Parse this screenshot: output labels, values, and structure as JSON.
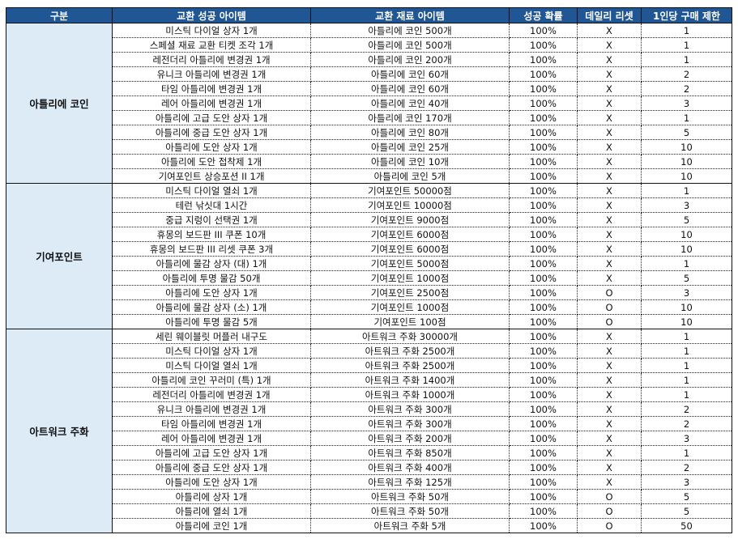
{
  "headers": [
    "구분",
    "교환 성공 아이템",
    "교환 재료 아이템",
    "성공 확률",
    "데일리 리셋",
    "1인당 구매 제한"
  ],
  "groups": [
    {
      "name": "아틀리에 코인",
      "rows": [
        [
          "미스틱 다이얼 상자 1개",
          "아틀리에 코인 500개",
          "100%",
          "X",
          "1"
        ],
        [
          "스페셜 재료 교환 티켓 조각 1개",
          "아틀리에 코인 500개",
          "100%",
          "X",
          "1"
        ],
        [
          "레전더리 아틀리에 변경권 1개",
          "아틀리에 코인 200개",
          "100%",
          "X",
          "1"
        ],
        [
          "유니크 아틀리에 변경권 1개",
          "아틀리에 코인 60개",
          "100%",
          "X",
          "2"
        ],
        [
          "타임 아틀리에 변경권 1개",
          "아틀리에 코인 60개",
          "100%",
          "X",
          "2"
        ],
        [
          "레어 아틀리에 변경권 1개",
          "아틀리에 코인 40개",
          "100%",
          "X",
          "3"
        ],
        [
          "아틀리에 고급 도안 상자 1개",
          "아틀리에 코인 170개",
          "100%",
          "X",
          "1"
        ],
        [
          "아틀리에 중급 도안 상자 1개",
          "아틀리에 코인 80개",
          "100%",
          "X",
          "5"
        ],
        [
          "아틀리에 도안 상자 1개",
          "아틀리에 코인 25개",
          "100%",
          "X",
          "10"
        ],
        [
          "아틀리에 도안 접착제 1개",
          "아틀리에 코인 10개",
          "100%",
          "X",
          "10"
        ],
        [
          "기여포인트 상승포션 II 1개",
          "아틀리에 코인 5개",
          "100%",
          "X",
          "10"
        ]
      ]
    },
    {
      "name": "기여포인트",
      "rows": [
        [
          "미스틱 다이얼 열쇠 1개",
          "기여포인트 50000점",
          "100%",
          "X",
          "1"
        ],
        [
          "테런 낚싯대 1시간",
          "기여포인트 10000점",
          "100%",
          "X",
          "3"
        ],
        [
          "중급 지렁이 선택권 1개",
          "기여포인트 9000점",
          "100%",
          "X",
          "5"
        ],
        [
          "휴몽의 보드판 III 쿠폰 10개",
          "기여포인트 6000점",
          "100%",
          "X",
          "10"
        ],
        [
          "휴몽의 보드판 III 리셋 쿠폰 3개",
          "기여포인트 6000점",
          "100%",
          "X",
          "10"
        ],
        [
          "아틀리에 물감 상자 (대) 1개",
          "기여포인트 5000점",
          "100%",
          "X",
          "1"
        ],
        [
          "아틀리에 투명 물감 50개",
          "기여포인트 1000점",
          "100%",
          "X",
          "5"
        ],
        [
          "아틀리에 도안 상자 1개",
          "기여포인트 2500점",
          "100%",
          "O",
          "3"
        ],
        [
          "아틀리에 물감 상자 (소) 1개",
          "기여포인트 1000점",
          "100%",
          "O",
          "10"
        ],
        [
          "아틀리에 투명 물감 5개",
          "기여포인트 100점",
          "100%",
          "O",
          "10"
        ]
      ]
    },
    {
      "name": "아트워크 주화",
      "rows": [
        [
          "세린 웨이블릿 머플러 내구도",
          "아트워크 주화 30000개",
          "100%",
          "X",
          "1"
        ],
        [
          "미스틱 다이얼 상자 1개",
          "아트워크 주화 2500개",
          "100%",
          "X",
          "1"
        ],
        [
          "미스틱 다이얼 열쇠 1개",
          "아트워크 주화 2500개",
          "100%",
          "X",
          "1"
        ],
        [
          "아틀리에 코인 꾸러미 (특) 1개",
          "아트워크 주화 1400개",
          "100%",
          "X",
          "1"
        ],
        [
          "레전더리 아틀리에 변경권 1개",
          "아트워크 주화 1000개",
          "100%",
          "X",
          "1"
        ],
        [
          "유니크 아틀리에 변경권 1개",
          "아트워크 주화 300개",
          "100%",
          "X",
          "2"
        ],
        [
          "타임 아틀리에 변경권 1개",
          "아트워크 주화 300개",
          "100%",
          "X",
          "2"
        ],
        [
          "레어 아틀리에 변경권 1개",
          "아트워크 주화 200개",
          "100%",
          "X",
          "3"
        ],
        [
          "아틀리에 고급 도안 상자 1개",
          "아트워크 주화 850개",
          "100%",
          "X",
          "1"
        ],
        [
          "아틀리에 중급 도안 상자 1개",
          "아트워크 주화 400개",
          "100%",
          "X",
          "2"
        ],
        [
          "아틀리에 도안 상자 1개",
          "아트워크 주화 125개",
          "100%",
          "X",
          "3"
        ],
        [
          "아틀리에 상자 1개",
          "아트워크 주화 50개",
          "100%",
          "O",
          "5"
        ],
        [
          "아틀리에 열쇠 1개",
          "아트워크 주화 50개",
          "100%",
          "O",
          "5"
        ],
        [
          "아틀리에 코인 1개",
          "아트워크 주화 5개",
          "100%",
          "O",
          "50"
        ]
      ]
    }
  ],
  "colors": {
    "header_bg": "#1f5693",
    "group_bg": "#ddebf7"
  }
}
